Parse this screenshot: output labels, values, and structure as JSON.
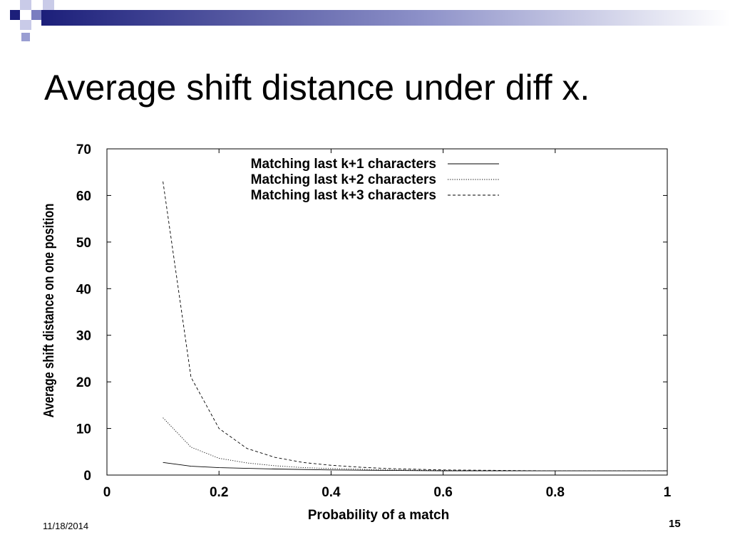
{
  "slide": {
    "title": "Average shift distance under diff x.",
    "date": "11/18/2014",
    "page_number": "15"
  },
  "colors": {
    "banner_dark": "#1c1f7a",
    "banner_mid": "#5a5fb0",
    "banner_light": "#c9cbe8"
  },
  "chart_data": {
    "type": "line",
    "title": "",
    "xlabel": "Probability of a match",
    "ylabel": "Average shift distance on one position",
    "xlim": [
      0,
      1
    ],
    "ylim": [
      0,
      70
    ],
    "xticks": [
      "0",
      "0.2",
      "0.4",
      "0.6",
      "0.8",
      "1"
    ],
    "yticks": [
      "0",
      "10",
      "20",
      "30",
      "40",
      "50",
      "60",
      "70"
    ],
    "legend_position": "top",
    "series": [
      {
        "name": "Matching last k+1 characters",
        "style": "solid",
        "x": [
          0.1,
          0.15,
          0.2,
          0.3,
          0.4,
          0.5,
          0.6,
          0.7,
          0.8,
          0.9,
          1.0
        ],
        "y": [
          2.7,
          1.9,
          1.6,
          1.3,
          1.1,
          1.0,
          0.9,
          0.9,
          0.9,
          0.9,
          0.9
        ]
      },
      {
        "name": "Matching last k+2 characters",
        "style": "dotted",
        "x": [
          0.1,
          0.15,
          0.2,
          0.25,
          0.3,
          0.35,
          0.4,
          0.5,
          0.6,
          0.7,
          0.8,
          0.9,
          1.0
        ],
        "y": [
          12.3,
          6.0,
          3.6,
          2.6,
          2.0,
          1.6,
          1.4,
          1.1,
          1.0,
          0.9,
          0.9,
          0.9,
          0.9
        ]
      },
      {
        "name": "Matching last k+3 characters",
        "style": "dashed",
        "x": [
          0.1,
          0.15,
          0.2,
          0.25,
          0.3,
          0.35,
          0.4,
          0.45,
          0.5,
          0.6,
          0.7,
          0.8,
          0.9,
          1.0
        ],
        "y": [
          63,
          21,
          10,
          5.7,
          3.8,
          2.7,
          2.1,
          1.7,
          1.4,
          1.1,
          1.0,
          0.9,
          0.9,
          0.9
        ]
      }
    ]
  }
}
